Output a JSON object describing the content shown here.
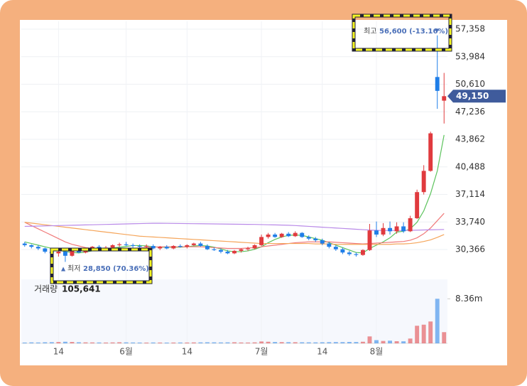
{
  "chart_data": {
    "type": "candlestick",
    "categories": [
      null,
      null,
      null,
      null,
      null,
      "14",
      null,
      null,
      null,
      null,
      null,
      null,
      null,
      null,
      null,
      "6월",
      null,
      null,
      null,
      null,
      null,
      null,
      null,
      null,
      "14",
      null,
      null,
      null,
      null,
      null,
      null,
      null,
      null,
      null,
      null,
      "7월",
      null,
      null,
      null,
      null,
      null,
      null,
      null,
      null,
      "14",
      null,
      null,
      null,
      null,
      null,
      null,
      null,
      "8월",
      null,
      null,
      null,
      null,
      null,
      null,
      null,
      null,
      null,
      null
    ],
    "open": [
      31100,
      30900,
      30700,
      30500,
      30100,
      29900,
      30100,
      29600,
      30200,
      30000,
      30400,
      30700,
      30500,
      30600,
      30900,
      31000,
      30900,
      30800,
      30700,
      30800,
      30500,
      30700,
      30500,
      30800,
      30700,
      30900,
      31100,
      30800,
      30400,
      30300,
      30100,
      29900,
      30200,
      30400,
      30500,
      30900,
      31900,
      32200,
      31900,
      32300,
      32000,
      32400,
      31900,
      31700,
      31500,
      31100,
      30700,
      30400,
      30000,
      29800,
      29700,
      30300,
      32700,
      32200,
      33000,
      32600,
      33200,
      32600,
      34200,
      37400,
      40000,
      51500,
      48600
    ],
    "high": [
      31300,
      31000,
      30900,
      30600,
      30400,
      30300,
      30200,
      30300,
      30500,
      30600,
      30800,
      30900,
      30800,
      31000,
      31200,
      31300,
      31100,
      31000,
      31000,
      31000,
      30800,
      30900,
      30900,
      31000,
      31000,
      31200,
      31300,
      31000,
      30600,
      30500,
      30300,
      30300,
      30500,
      30700,
      31000,
      32200,
      32400,
      32400,
      32400,
      32500,
      32600,
      32500,
      32100,
      31900,
      31700,
      31300,
      30900,
      30600,
      30200,
      30000,
      30400,
      33500,
      33800,
      33600,
      33800,
      33700,
      33700,
      34500,
      37700,
      40700,
      44800,
      56600,
      52000
    ],
    "low": [
      30700,
      30500,
      30300,
      29900,
      29700,
      29500,
      28850,
      29500,
      29900,
      29900,
      30300,
      30400,
      30300,
      30500,
      30700,
      30800,
      30600,
      30500,
      30500,
      30400,
      30300,
      30400,
      30400,
      30600,
      30500,
      30800,
      30700,
      30300,
      30200,
      29900,
      29800,
      29800,
      30000,
      30200,
      30400,
      30800,
      31700,
      31800,
      31800,
      31900,
      31900,
      31800,
      31500,
      31300,
      30900,
      30500,
      30200,
      29800,
      29600,
      29500,
      29600,
      30200,
      31900,
      32000,
      32200,
      32300,
      32400,
      32500,
      34100,
      37100,
      39900,
      47600,
      45800
    ],
    "close": [
      30900,
      30700,
      30500,
      30100,
      29900,
      30100,
      29600,
      30200,
      30000,
      30400,
      30700,
      30500,
      30600,
      30900,
      31000,
      30900,
      30800,
      30700,
      30800,
      30500,
      30700,
      30500,
      30800,
      30700,
      30900,
      31100,
      30800,
      30400,
      30300,
      30100,
      29900,
      30200,
      30400,
      30500,
      30900,
      31900,
      32200,
      31900,
      32300,
      32000,
      32400,
      31900,
      31700,
      31500,
      31100,
      30700,
      30400,
      30000,
      29800,
      29700,
      30300,
      32700,
      32200,
      33000,
      32600,
      33200,
      32600,
      34200,
      37400,
      40000,
      44600,
      49800,
      49150
    ],
    "up_color": "#e03a3e",
    "down_color": "#1f7ee8",
    "ylim": [
      26970,
      58320
    ],
    "yticks": [
      {
        "value": 30366,
        "label": "30,366"
      },
      {
        "value": 33740,
        "label": "33,740"
      },
      {
        "value": 37114,
        "label": "37,114"
      },
      {
        "value": 40488,
        "label": "40,488"
      },
      {
        "value": 43862,
        "label": "43,862"
      },
      {
        "value": 47236,
        "label": "47,236"
      },
      {
        "value": 50610,
        "label": "50,610"
      },
      {
        "value": 53984,
        "label": "53,984"
      },
      {
        "value": 57358,
        "label": "57,358"
      }
    ],
    "grid": true,
    "moving_averages": [
      {
        "color": "#5cc35c",
        "values": [
          31300,
          31100,
          30900,
          30700,
          30500,
          30300,
          30100,
          30000,
          29950,
          30050,
          30200,
          30300,
          30450,
          30550,
          30650,
          30750,
          30850,
          30850,
          30800,
          30700,
          30650,
          30650,
          30650,
          30650,
          30700,
          30800,
          30850,
          30800,
          30650,
          30450,
          30200,
          30100,
          30100,
          30200,
          30400,
          30700,
          31200,
          31600,
          31900,
          32100,
          32150,
          32100,
          31900,
          31700,
          31500,
          31200,
          30900,
          30600,
          30300,
          30000,
          29950,
          30500,
          30900,
          31300,
          31800,
          32500,
          32600,
          32900,
          33700,
          35100,
          37200,
          40000,
          44400
        ]
      },
      {
        "color": "#f07a7a",
        "values": [
          33700,
          33300,
          32900,
          32500,
          32100,
          31700,
          31300,
          31000,
          30800,
          30600,
          30500,
          30450,
          30400,
          30400,
          30400,
          30450,
          30500,
          30550,
          30600,
          30650,
          30700,
          30700,
          30700,
          30700,
          30700,
          30700,
          30700,
          30650,
          30600,
          30550,
          30500,
          30500,
          30500,
          30550,
          30600,
          30700,
          30800,
          30900,
          31000,
          31100,
          31200,
          31250,
          31300,
          31300,
          31300,
          31300,
          31250,
          31200,
          31150,
          31100,
          31050,
          31100,
          31150,
          31200,
          31250,
          31300,
          31350,
          31500,
          31800,
          32300,
          33000,
          33900,
          34800
        ]
      },
      {
        "color": "#f5a55a",
        "values": [
          33700,
          33600,
          33500,
          33400,
          33300,
          33200,
          33100,
          33000,
          32900,
          32800,
          32700,
          32600,
          32500,
          32400,
          32300,
          32200,
          32100,
          32000,
          31950,
          31900,
          31850,
          31800,
          31750,
          31700,
          31650,
          31600,
          31550,
          31500,
          31450,
          31400,
          31350,
          31300,
          31250,
          31200,
          31150,
          31100,
          31100,
          31100,
          31100,
          31100,
          31100,
          31100,
          31100,
          31050,
          31050,
          31050,
          31000,
          31000,
          31000,
          31000,
          31000,
          31000,
          31000,
          31000,
          31000,
          31050,
          31050,
          31100,
          31200,
          31350,
          31550,
          31850,
          32200
        ]
      },
      {
        "color": "#b98ae8",
        "values": [
          33200,
          33220,
          33240,
          33260,
          33280,
          33300,
          33320,
          33340,
          33360,
          33380,
          33400,
          33420,
          33440,
          33460,
          33480,
          33500,
          33520,
          33540,
          33560,
          33580,
          33580,
          33570,
          33560,
          33550,
          33540,
          33530,
          33520,
          33510,
          33500,
          33490,
          33480,
          33470,
          33460,
          33450,
          33440,
          33420,
          33400,
          33380,
          33360,
          33340,
          33300,
          33250,
          33200,
          33150,
          33100,
          33050,
          33000,
          32950,
          32900,
          32850,
          32800,
          32750,
          32720,
          32700,
          32700,
          32700,
          32700,
          32720,
          32740,
          32760,
          32780,
          32800,
          32820
        ]
      }
    ],
    "volume": [
      150000,
      180000,
      160000,
      200000,
      220000,
      250000,
      300000,
      260000,
      200000,
      180000,
      170000,
      160000,
      150000,
      170000,
      200000,
      180000,
      160000,
      150000,
      140000,
      160000,
      150000,
      140000,
      150000,
      160000,
      150000,
      170000,
      180000,
      200000,
      190000,
      170000,
      180000,
      200000,
      160000,
      150000,
      180000,
      350000,
      300000,
      250000,
      230000,
      220000,
      210000,
      200000,
      190000,
      180000,
      200000,
      220000,
      240000,
      230000,
      260000,
      250000,
      300000,
      1300000,
      600000,
      450000,
      500000,
      400000,
      380000,
      900000,
      3300000,
      3500000,
      4100000,
      8360000,
      2100000
    ],
    "volume_ylim": [
      0,
      12000000
    ],
    "volume_yticks": [
      {
        "value": 8360000,
        "label": "8.36m"
      }
    ],
    "volume_title": "거래량",
    "volume_current": "105,641",
    "last_price": {
      "value": 49150,
      "label": "49,150"
    },
    "high_annotation": {
      "label": "최고",
      "text": "56,600 (-13.16%)",
      "arrow": "▼"
    },
    "low_annotation": {
      "arrow": "▲",
      "label": "최저",
      "text": "28,850 (70.36%)"
    }
  }
}
